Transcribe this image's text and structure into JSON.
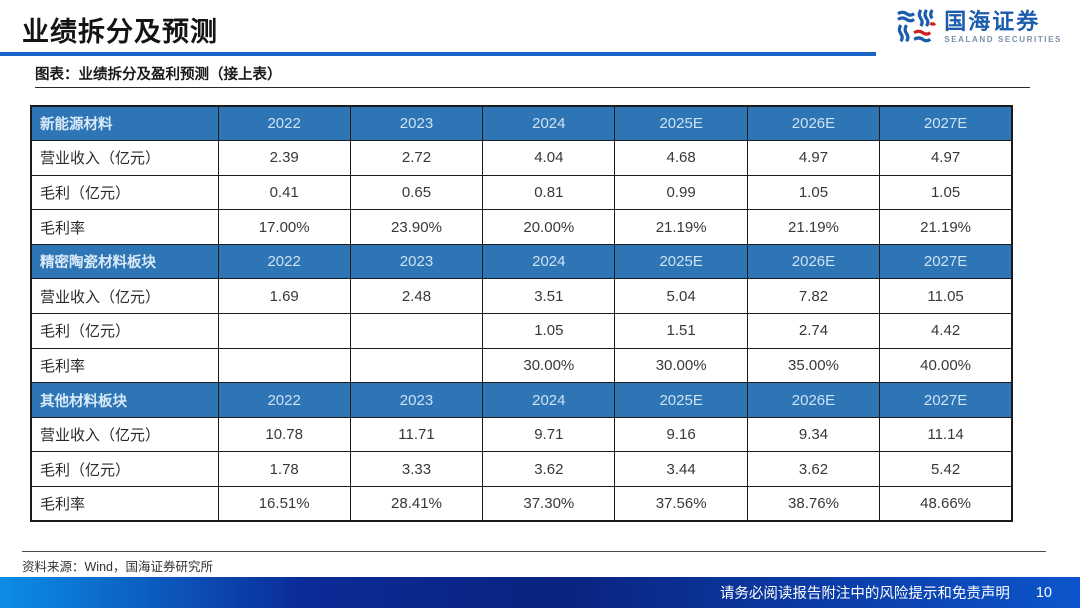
{
  "header": {
    "title": "业绩拆分及预测",
    "logo": {
      "name": "国海证券",
      "subtitle": "SEALAND SECURITIES"
    }
  },
  "figure": {
    "caption": "图表：业绩拆分及盈利预测（接上表）",
    "source": "资料来源：Wind，国海证券研究所"
  },
  "footer": {
    "disclaimer": "请务必阅读报告附注中的风险提示和免责声明",
    "page_number": "10"
  },
  "colors": {
    "table_header_bg": "#2E75B6",
    "table_header_text": "#D8E9F7",
    "title_accent_rule": "#1A63C6",
    "logo_blue": "#1C5CAC",
    "logo_red": "#D0231F",
    "footer_gradient": [
      "#0D8DE6",
      "#0B2B98",
      "#0C55CC"
    ],
    "border": "#1B1B1B"
  },
  "chart_data": {
    "type": "table",
    "columns": [
      "2022",
      "2023",
      "2024",
      "2025E",
      "2026E",
      "2027E"
    ],
    "sections": [
      {
        "name": "新能源材料",
        "rows": [
          {
            "label": "营业收入（亿元）",
            "values": [
              "2.39",
              "2.72",
              "4.04",
              "4.68",
              "4.97",
              "4.97"
            ]
          },
          {
            "label": "毛利（亿元）",
            "values": [
              "0.41",
              "0.65",
              "0.81",
              "0.99",
              "1.05",
              "1.05"
            ]
          },
          {
            "label": "毛利率",
            "values": [
              "17.00%",
              "23.90%",
              "20.00%",
              "21.19%",
              "21.19%",
              "21.19%"
            ]
          }
        ]
      },
      {
        "name": "精密陶瓷材料板块",
        "rows": [
          {
            "label": "营业收入（亿元）",
            "values": [
              "1.69",
              "2.48",
              "3.51",
              "5.04",
              "7.82",
              "11.05"
            ]
          },
          {
            "label": "毛利（亿元）",
            "values": [
              "",
              "",
              "1.05",
              "1.51",
              "2.74",
              "4.42"
            ]
          },
          {
            "label": "毛利率",
            "values": [
              "",
              "",
              "30.00%",
              "30.00%",
              "35.00%",
              "40.00%"
            ]
          }
        ]
      },
      {
        "name": "其他材料板块",
        "rows": [
          {
            "label": "营业收入（亿元）",
            "values": [
              "10.78",
              "11.71",
              "9.71",
              "9.16",
              "9.34",
              "11.14"
            ]
          },
          {
            "label": "毛利（亿元）",
            "values": [
              "1.78",
              "3.33",
              "3.62",
              "3.44",
              "3.62",
              "5.42"
            ]
          },
          {
            "label": "毛利率",
            "values": [
              "16.51%",
              "28.41%",
              "37.30%",
              "37.56%",
              "38.76%",
              "48.66%"
            ]
          }
        ]
      }
    ]
  }
}
